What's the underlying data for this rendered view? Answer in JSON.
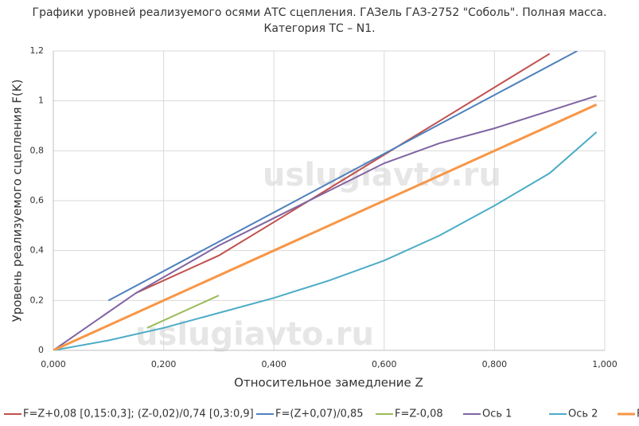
{
  "chart_data": {
    "type": "line",
    "title": "Графики уровней реализуемого осями АТС сцепления. ГАЗель ГАЗ-2752 \"Соболь\". Полная масса. Категория ТС – N1.",
    "x_label": "Относительное замедление Z",
    "y_label": "Уровень реализуемого сцепления F(K)",
    "watermark": "uslugiavto.ru",
    "xlim": [
      0,
      1
    ],
    "ylim": [
      0,
      1.2
    ],
    "xticks": [
      {
        "value": 0,
        "label": "0,000"
      },
      {
        "value": 0.2,
        "label": "0,200"
      },
      {
        "value": 0.4,
        "label": "0,400"
      },
      {
        "value": 0.6,
        "label": "0,600"
      },
      {
        "value": 0.8,
        "label": "0,800"
      },
      {
        "value": 1,
        "label": "1,000"
      }
    ],
    "yticks": [
      0,
      {
        "value": 0.2,
        "label": "0,2"
      },
      {
        "value": 0.4,
        "label": "0,4"
      },
      {
        "value": 0.6,
        "label": "0,6"
      },
      {
        "value": 0.8,
        "label": "0,8"
      },
      1,
      {
        "value": 1.2,
        "label": "1,2"
      }
    ],
    "grid": true,
    "series": [
      {
        "name": "F=Z+0,08 [0,15:0,3]; (Z-0,02)/0,74 [0,3:0,9]",
        "color": "#c0504d",
        "x": [
          0.15,
          0.3,
          0.4,
          0.5,
          0.6,
          0.7,
          0.9
        ],
        "values": [
          0.23,
          0.38,
          0.514,
          0.649,
          0.784,
          0.919,
          1.189
        ]
      },
      {
        "name": "F=(Z+0,07)/0,85",
        "color": "#4f81bd",
        "x": [
          0.1,
          0.95
        ],
        "values": [
          0.2,
          1.2
        ]
      },
      {
        "name": "F=Z-0,08",
        "color": "#9bbb59",
        "x": [
          0.17,
          0.3
        ],
        "values": [
          0.09,
          0.22
        ]
      },
      {
        "name": "Ось 1",
        "color": "#8064a2",
        "x": [
          0,
          0.15,
          0.3,
          0.4,
          0.5,
          0.6,
          0.7,
          0.8,
          0.9,
          0.985
        ],
        "values": [
          0,
          0.23,
          0.42,
          0.53,
          0.64,
          0.75,
          0.83,
          0.89,
          0.96,
          1.02
        ]
      },
      {
        "name": "Ось 2",
        "color": "#4bacc6",
        "x": [
          0,
          0.1,
          0.2,
          0.3,
          0.4,
          0.5,
          0.6,
          0.7,
          0.8,
          0.9,
          0.985
        ],
        "values": [
          0,
          0.04,
          0.09,
          0.15,
          0.21,
          0.28,
          0.36,
          0.46,
          0.58,
          0.71,
          0.875
        ]
      },
      {
        "name": "F=Z",
        "color": "#f79646",
        "x": [
          0,
          0.985
        ],
        "values": [
          0,
          0.985
        ]
      }
    ]
  }
}
